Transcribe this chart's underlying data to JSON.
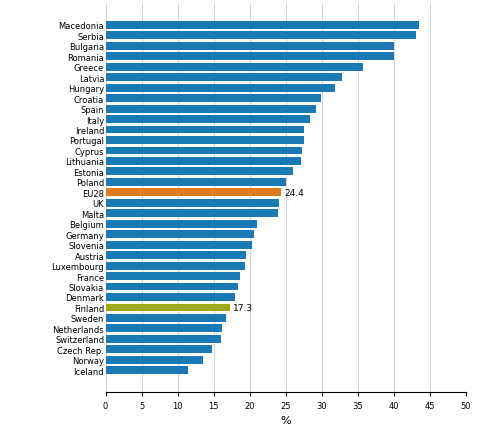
{
  "countries": [
    "Macedonia",
    "Serbia",
    "Bulgaria",
    "Romania",
    "Greece",
    "Latvia",
    "Hungary",
    "Croatia",
    "Spain",
    "Italy",
    "Ireland",
    "Portugal",
    "Cyprus",
    "Lithuania",
    "Estonia",
    "Poland",
    "EU28",
    "UK",
    "Malta",
    "Belgium",
    "Germany",
    "Slovenia",
    "Austria",
    "Luxembourg",
    "France",
    "Slovakia",
    "Denmark",
    "Finland",
    "Sweden",
    "Netherlands",
    "Switzerland",
    "Czech Rep.",
    "Norway",
    "Iceland"
  ],
  "values": [
    43.5,
    43.1,
    40.1,
    40.0,
    35.7,
    32.9,
    31.8,
    29.9,
    29.2,
    28.4,
    27.6,
    27.5,
    27.3,
    27.2,
    26.0,
    25.1,
    24.4,
    24.1,
    24.0,
    21.0,
    20.6,
    20.4,
    19.5,
    19.3,
    18.6,
    18.4,
    18.0,
    17.3,
    16.7,
    16.1,
    16.0,
    14.8,
    13.5,
    11.4
  ],
  "bar_colors": [
    "#1a7ab5",
    "#1a7ab5",
    "#1a7ab5",
    "#1a7ab5",
    "#1a7ab5",
    "#1a7ab5",
    "#1a7ab5",
    "#1a7ab5",
    "#1a7ab5",
    "#1a7ab5",
    "#1a7ab5",
    "#1a7ab5",
    "#1a7ab5",
    "#1a7ab5",
    "#1a7ab5",
    "#1a7ab5",
    "#e07b20",
    "#1a7ab5",
    "#1a7ab5",
    "#1a7ab5",
    "#1a7ab5",
    "#1a7ab5",
    "#1a7ab5",
    "#1a7ab5",
    "#1a7ab5",
    "#1a7ab5",
    "#1a7ab5",
    "#9aaa1a",
    "#1a7ab5",
    "#1a7ab5",
    "#1a7ab5",
    "#1a7ab5",
    "#1a7ab5",
    "#1a7ab5"
  ],
  "labeled_bars": {
    "EU28": 24.4,
    "Finland": 17.3
  },
  "xlabel": "%",
  "xlim": [
    0,
    50
  ],
  "xticks": [
    0,
    5,
    10,
    15,
    20,
    25,
    30,
    35,
    40,
    45,
    50
  ],
  "grid_color": "#cccccc",
  "bar_height": 0.75,
  "label_fontsize": 6.0,
  "tick_fontsize": 6.0,
  "xlabel_fontsize": 8.0,
  "annotation_fontsize": 6.5
}
